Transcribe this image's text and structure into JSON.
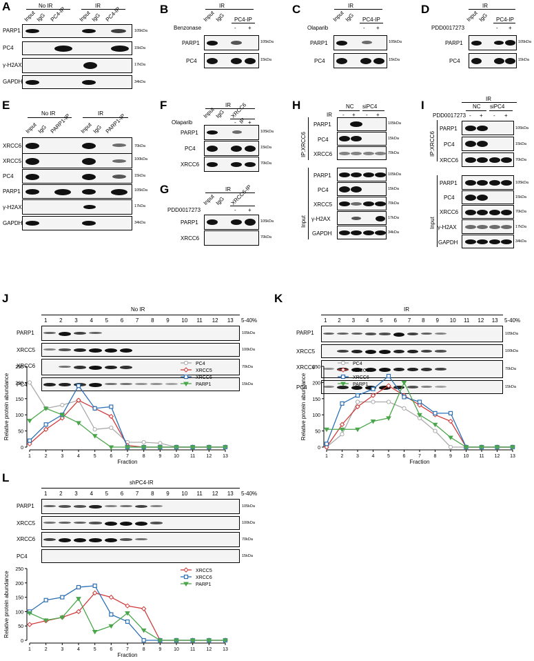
{
  "labels": {
    "A": "A",
    "B": "B",
    "C": "C",
    "D": "D",
    "E": "E",
    "F": "F",
    "G": "G",
    "H": "H",
    "I": "I",
    "J": "J",
    "K": "K",
    "L": "L"
  },
  "conditions": {
    "no_ir": "No IR",
    "ir": "IR",
    "shpc4_ir": "shPC4-IR",
    "nc": "NC",
    "sipc4": "siPC4",
    "minus": "-",
    "plus": "+",
    "ip_xrcc6": "IP:XRCC6",
    "input_side": "Input"
  },
  "lanes": {
    "input": "Input",
    "igg": "IgG",
    "pc4_ip": "PC4-IP",
    "parp1_ip": "PARP1-IP",
    "xrcc6_ip": "XRCC6-IP",
    "xrcc6_ip_split": [
      "XRCC6",
      "IP"
    ]
  },
  "treatments": {
    "benzonase": "Benzonase",
    "olaparib": "Olaparib",
    "pdd": "PDD0017273"
  },
  "proteins": {
    "parp1": "PARP1",
    "pc4": "PC4",
    "h2ax": "γ-H2AX",
    "gapdh": "GAPDH",
    "xrcc6": "XRCC6",
    "xrcc5": "XRCC5"
  },
  "markers": {
    "m105": "105kDa",
    "m15": "15kDa",
    "m17": "17kDa",
    "m34": "34kDa",
    "m70": "70kDa",
    "m100": "100kDa"
  },
  "gradient": {
    "label": "5-40%",
    "fractions": [
      "1",
      "2",
      "3",
      "4",
      "5",
      "6",
      "7",
      "8",
      "9",
      "10",
      "11",
      "12",
      "13"
    ]
  },
  "chart_data": [
    {
      "panel": "J",
      "type": "line",
      "x": [
        1,
        2,
        3,
        4,
        5,
        6,
        7,
        8,
        9,
        10,
        11,
        12,
        13
      ],
      "xlabel": "Fraction",
      "ylabel": "Relative protein abundance",
      "ylim": [
        0,
        250
      ],
      "yticks": [
        0,
        50,
        100,
        150,
        200,
        250
      ],
      "legend": "top-right",
      "series": [
        {
          "name": "PC4",
          "color": "#aaaaaa",
          "marker": "circle-open",
          "values": [
            200,
            120,
            130,
            145,
            55,
            60,
            15,
            15,
            12,
            0,
            0,
            0,
            0
          ]
        },
        {
          "name": "XRCC5",
          "color": "#d03a3a",
          "marker": "diamond",
          "values": [
            10,
            55,
            90,
            145,
            120,
            95,
            5,
            0,
            0,
            0,
            0,
            0,
            0
          ]
        },
        {
          "name": "XRCC6",
          "color": "#2a6fb5",
          "marker": "square",
          "values": [
            20,
            70,
            100,
            190,
            120,
            125,
            0,
            0,
            0,
            0,
            0,
            0,
            0
          ]
        },
        {
          "name": "PARP1",
          "color": "#4aa64a",
          "marker": "triangle-down",
          "values": [
            82,
            120,
            100,
            75,
            35,
            0,
            0,
            0,
            0,
            0,
            0,
            0,
            0
          ]
        }
      ]
    },
    {
      "panel": "K",
      "type": "line",
      "x": [
        1,
        2,
        3,
        4,
        5,
        6,
        7,
        8,
        9,
        10,
        11,
        12,
        13
      ],
      "xlabel": "Fraction",
      "ylabel": "Relative protein abundance",
      "ylim": [
        0,
        250
      ],
      "yticks": [
        0,
        50,
        100,
        150,
        200,
        250
      ],
      "legend": "top-left",
      "series": [
        {
          "name": "PC4",
          "color": "#aaaaaa",
          "marker": "circle-open",
          "values": [
            0,
            40,
            140,
            140,
            140,
            120,
            90,
            50,
            0,
            0,
            0,
            0,
            0
          ]
        },
        {
          "name": "XRCC5",
          "color": "#d03a3a",
          "marker": "diamond",
          "values": [
            0,
            70,
            125,
            160,
            190,
            160,
            130,
            100,
            80,
            0,
            0,
            0,
            0
          ]
        },
        {
          "name": "XRCC6",
          "color": "#2a6fb5",
          "marker": "square",
          "values": [
            10,
            135,
            160,
            180,
            220,
            155,
            140,
            105,
            105,
            0,
            0,
            0,
            0
          ]
        },
        {
          "name": "PARP1",
          "color": "#4aa64a",
          "marker": "triangle-down",
          "values": [
            55,
            55,
            55,
            80,
            90,
            200,
            100,
            70,
            30,
            0,
            0,
            0,
            0
          ]
        }
      ]
    },
    {
      "panel": "L",
      "type": "line",
      "x": [
        1,
        2,
        3,
        4,
        5,
        6,
        7,
        8,
        9,
        10,
        11,
        12,
        13
      ],
      "xlabel": "Fraction",
      "ylabel": "Relative protein abundance",
      "ylim": [
        0,
        250
      ],
      "yticks": [
        0,
        50,
        100,
        150,
        200,
        250
      ],
      "legend": "top-right",
      "series": [
        {
          "name": "XRCC5",
          "color": "#d03a3a",
          "marker": "diamond",
          "values": [
            55,
            68,
            80,
            100,
            165,
            150,
            120,
            110,
            0,
            0,
            0,
            0,
            0
          ]
        },
        {
          "name": "XRCC6",
          "color": "#2a6fb5",
          "marker": "square",
          "values": [
            100,
            140,
            150,
            185,
            190,
            90,
            65,
            0,
            0,
            0,
            0,
            0,
            0
          ]
        },
        {
          "name": "PARP1",
          "color": "#4aa64a",
          "marker": "triangle-down",
          "values": [
            95,
            70,
            80,
            145,
            30,
            50,
            95,
            35,
            0,
            0,
            0,
            0,
            0
          ]
        }
      ]
    }
  ]
}
